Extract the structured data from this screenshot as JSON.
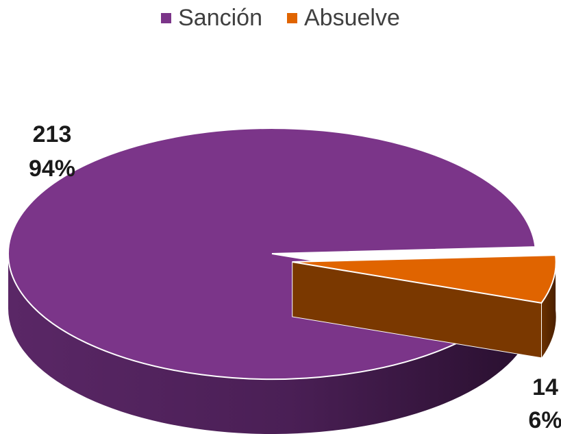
{
  "chart_data": {
    "type": "pie",
    "title": "",
    "three_d": true,
    "exploded_slice": "Absuelve",
    "legend_position": "top",
    "categories": [
      "Sanción",
      "Absuelve"
    ],
    "values": [
      213,
      14
    ],
    "percent_labels": [
      "94%",
      "6%"
    ],
    "value_labels": [
      "213",
      "14"
    ],
    "colors": [
      "#7b3589",
      "#e06400"
    ]
  }
}
